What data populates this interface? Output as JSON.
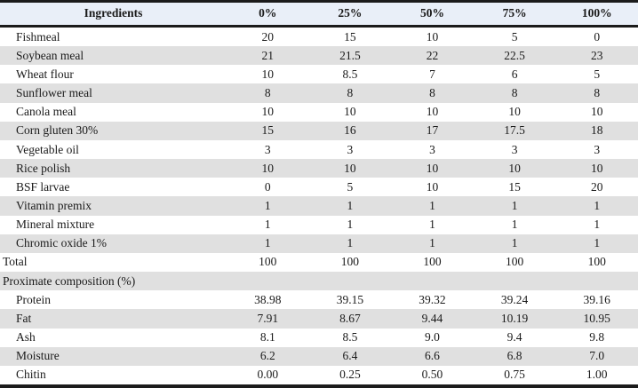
{
  "colors": {
    "header_bg": "#e9eff8",
    "stripe_bg": "#e0e0e0",
    "border": "#1b1b1b",
    "text": "#1a1a1a"
  },
  "table": {
    "header": {
      "label_col": "Ingredients",
      "value_cols": [
        "0%",
        "25%",
        "50%",
        "75%",
        "100%"
      ]
    },
    "rows": [
      {
        "type": "ingredient",
        "label": "Fishmeal",
        "values": [
          "20",
          "15",
          "10",
          "5",
          "0"
        ]
      },
      {
        "type": "ingredient",
        "label": "Soybean meal",
        "values": [
          "21",
          "21.5",
          "22",
          "22.5",
          "23"
        ]
      },
      {
        "type": "ingredient",
        "label": "Wheat flour",
        "values": [
          "10",
          "8.5",
          "7",
          "6",
          "5"
        ]
      },
      {
        "type": "ingredient",
        "label": "Sunflower meal",
        "values": [
          "8",
          "8",
          "8",
          "8",
          "8"
        ]
      },
      {
        "type": "ingredient",
        "label": "Canola meal",
        "values": [
          "10",
          "10",
          "10",
          "10",
          "10"
        ]
      },
      {
        "type": "ingredient",
        "label": "Corn gluten 30%",
        "values": [
          "15",
          "16",
          "17",
          "17.5",
          "18"
        ]
      },
      {
        "type": "ingredient",
        "label": "Vegetable oil",
        "values": [
          "3",
          "3",
          "3",
          "3",
          "3"
        ]
      },
      {
        "type": "ingredient",
        "label": "Rice polish",
        "values": [
          "10",
          "10",
          "10",
          "10",
          "10"
        ]
      },
      {
        "type": "ingredient",
        "label": "BSF larvae",
        "values": [
          "0",
          "5",
          "10",
          "15",
          "20"
        ]
      },
      {
        "type": "ingredient",
        "label": "Vitamin premix",
        "values": [
          "1",
          "1",
          "1",
          "1",
          "1"
        ]
      },
      {
        "type": "ingredient",
        "label": "Mineral mixture",
        "values": [
          "1",
          "1",
          "1",
          "1",
          "1"
        ]
      },
      {
        "type": "ingredient",
        "label": "Chromic oxide 1%",
        "values": [
          "1",
          "1",
          "1",
          "1",
          "1"
        ]
      },
      {
        "type": "total",
        "label": "Total",
        "values": [
          "100",
          "100",
          "100",
          "100",
          "100"
        ]
      },
      {
        "type": "section",
        "label": "Proximate composition (%)",
        "values": [
          "",
          "",
          "",
          "",
          ""
        ]
      },
      {
        "type": "nutrient",
        "label": "Protein",
        "values": [
          "38.98",
          "39.15",
          "39.32",
          "39.24",
          "39.16"
        ]
      },
      {
        "type": "nutrient",
        "label": "Fat",
        "values": [
          "7.91",
          "8.67",
          "9.44",
          "10.19",
          "10.95"
        ]
      },
      {
        "type": "nutrient",
        "label": "Ash",
        "values": [
          "8.1",
          "8.5",
          "9.0",
          "9.4",
          "9.8"
        ]
      },
      {
        "type": "nutrient",
        "label": "Moisture",
        "values": [
          "6.2",
          "6.4",
          "6.6",
          "6.8",
          "7.0"
        ]
      },
      {
        "type": "nutrient",
        "label": "Chitin",
        "values": [
          "0.00",
          "0.25",
          "0.50",
          "0.75",
          "1.00"
        ]
      }
    ]
  }
}
